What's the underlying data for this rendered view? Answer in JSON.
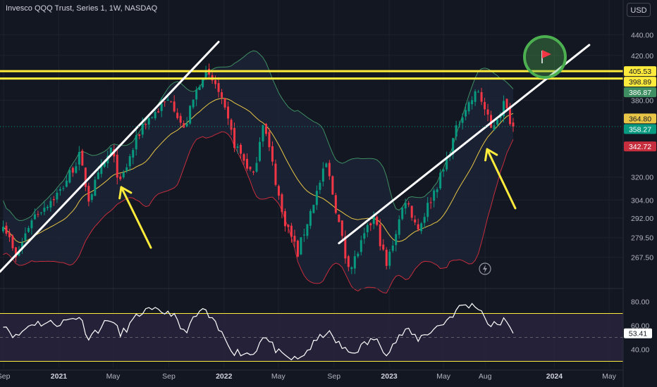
{
  "title": "Invesco QQQ Trust, Series 1, 1W, NASDAQ",
  "currency": "USD",
  "colors": {
    "bg": "#131722",
    "up": "#089981",
    "down": "#f23645",
    "ma": "#e8c547",
    "bb_upper": "#3e8e62",
    "bb_lower": "#c62d3d",
    "trend": "#ffffff",
    "level": "#ffeb3b",
    "rsi": "#ffffff",
    "rsi_band": "#ffeb3b",
    "rsi_fill": "#2a2440",
    "annotation": "#ffeb3b",
    "flag_ring": "#4caf50",
    "flag": "#f23645"
  },
  "chart_data": [
    {
      "type": "candlestick",
      "series_name": "QQQ 1W",
      "y_scale": "log",
      "y_ticks": [
        "440.00",
        "420.00",
        "380.00",
        "320.00",
        "304.00",
        "292.00",
        "279.50",
        "267.50"
      ],
      "y_tick_values": [
        440,
        420,
        380,
        320,
        304,
        292,
        279.5,
        267.5
      ],
      "x_ticks": [
        "Sep",
        "2021",
        "May",
        "Sep",
        "2022",
        "May",
        "Sep",
        "2023",
        "May",
        "Aug",
        "2024",
        "May"
      ],
      "x_tick_dates": [
        "2020-09-01",
        "2021-01-01",
        "2021-05-01",
        "2021-09-01",
        "2022-01-01",
        "2022-05-01",
        "2022-09-01",
        "2023-01-01",
        "2023-05-01",
        "2023-08-01",
        "2024-01-01",
        "2024-05-01"
      ],
      "ylim": [
        255,
        455
      ],
      "xlim": [
        "2020-08-24",
        "2024-06-01"
      ],
      "key": [
        {
          "date": "2020-08-31",
          "close": 290
        },
        {
          "date": "2020-09-28",
          "close": 266
        },
        {
          "date": "2020-11-02",
          "close": 292
        },
        {
          "date": "2021-01-04",
          "close": 310
        },
        {
          "date": "2021-02-15",
          "close": 335
        },
        {
          "date": "2021-03-08",
          "close": 305
        },
        {
          "date": "2021-04-26",
          "close": 340
        },
        {
          "date": "2021-05-17",
          "close": 315
        },
        {
          "date": "2021-07-05",
          "close": 360
        },
        {
          "date": "2021-09-06",
          "close": 382
        },
        {
          "date": "2021-10-04",
          "close": 355
        },
        {
          "date": "2021-11-15",
          "close": 404
        },
        {
          "date": "2021-12-13",
          "close": 394
        },
        {
          "date": "2022-01-24",
          "close": 345
        },
        {
          "date": "2022-03-07",
          "close": 320
        },
        {
          "date": "2022-03-28",
          "close": 363
        },
        {
          "date": "2022-05-09",
          "close": 295
        },
        {
          "date": "2022-06-13",
          "close": 270
        },
        {
          "date": "2022-08-15",
          "close": 329
        },
        {
          "date": "2022-09-26",
          "close": 268
        },
        {
          "date": "2022-10-10",
          "close": 262
        },
        {
          "date": "2022-11-28",
          "close": 293
        },
        {
          "date": "2022-12-26",
          "close": 262
        },
        {
          "date": "2023-02-06",
          "close": 305
        },
        {
          "date": "2023-03-06",
          "close": 285
        },
        {
          "date": "2023-05-01",
          "close": 325
        },
        {
          "date": "2023-06-12",
          "close": 370
        },
        {
          "date": "2023-07-17",
          "close": 388
        },
        {
          "date": "2023-08-14",
          "close": 356
        },
        {
          "date": "2023-09-11",
          "close": 377
        },
        {
          "date": "2023-10-02",
          "close": 358.27
        }
      ],
      "price_labels": [
        {
          "text": "405.53",
          "value": 405.53,
          "kind": "level"
        },
        {
          "text": "398.89",
          "value": 398.89,
          "kind": "level"
        },
        {
          "text": "386.87",
          "value": 386.87,
          "kind": "bb_upper"
        },
        {
          "text": "364.80",
          "value": 364.8,
          "kind": "ma"
        },
        {
          "text": "358.27",
          "value": 358.27,
          "kind": "last"
        },
        {
          "text": "342.72",
          "value": 342.72,
          "kind": "bb_lower"
        }
      ],
      "horizontal_levels": [
        405.53,
        398.89
      ],
      "trendlines": [
        {
          "from": {
            "date": "2020-08-24",
            "price": 259
          },
          "to": {
            "date": "2021-12-20",
            "price": 433
          }
        },
        {
          "from": {
            "date": "2022-09-12",
            "price": 276
          },
          "to": {
            "date": "2024-03-18",
            "price": 430
          }
        }
      ]
    },
    {
      "type": "line",
      "series_name": "RSI",
      "y_ticks": [
        "80.00",
        "60.00",
        "40.00"
      ],
      "y_tick_values": [
        80,
        60,
        40
      ],
      "bands": [
        70,
        30
      ],
      "midline": 50,
      "ylim": [
        25,
        85
      ],
      "last_label": "53.41",
      "last": 53.41,
      "key": [
        {
          "date": "2020-08-31",
          "rsi": 62
        },
        {
          "date": "2020-09-28",
          "rsi": 50
        },
        {
          "date": "2020-11-02",
          "rsi": 62
        },
        {
          "date": "2021-01-04",
          "rsi": 62
        },
        {
          "date": "2021-02-15",
          "rsi": 68
        },
        {
          "date": "2021-03-08",
          "rsi": 50
        },
        {
          "date": "2021-04-26",
          "rsi": 66
        },
        {
          "date": "2021-05-17",
          "rsi": 52
        },
        {
          "date": "2021-07-05",
          "rsi": 72
        },
        {
          "date": "2021-09-06",
          "rsi": 71
        },
        {
          "date": "2021-10-04",
          "rsi": 54
        },
        {
          "date": "2021-11-15",
          "rsi": 74
        },
        {
          "date": "2021-12-13",
          "rsi": 60
        },
        {
          "date": "2022-01-24",
          "rsi": 38
        },
        {
          "date": "2022-03-07",
          "rsi": 36
        },
        {
          "date": "2022-03-28",
          "rsi": 52
        },
        {
          "date": "2022-05-09",
          "rsi": 34
        },
        {
          "date": "2022-06-13",
          "rsi": 31
        },
        {
          "date": "2022-08-15",
          "rsi": 55
        },
        {
          "date": "2022-09-26",
          "rsi": 39
        },
        {
          "date": "2022-10-10",
          "rsi": 37
        },
        {
          "date": "2022-11-28",
          "rsi": 49
        },
        {
          "date": "2022-12-26",
          "rsi": 38
        },
        {
          "date": "2023-02-06",
          "rsi": 56
        },
        {
          "date": "2023-03-06",
          "rsi": 49
        },
        {
          "date": "2023-05-01",
          "rsi": 62
        },
        {
          "date": "2023-06-12",
          "rsi": 77
        },
        {
          "date": "2023-07-17",
          "rsi": 76
        },
        {
          "date": "2023-08-14",
          "rsi": 59
        },
        {
          "date": "2023-09-11",
          "rsi": 64
        },
        {
          "date": "2023-10-02",
          "rsi": 53.41
        }
      ]
    }
  ]
}
